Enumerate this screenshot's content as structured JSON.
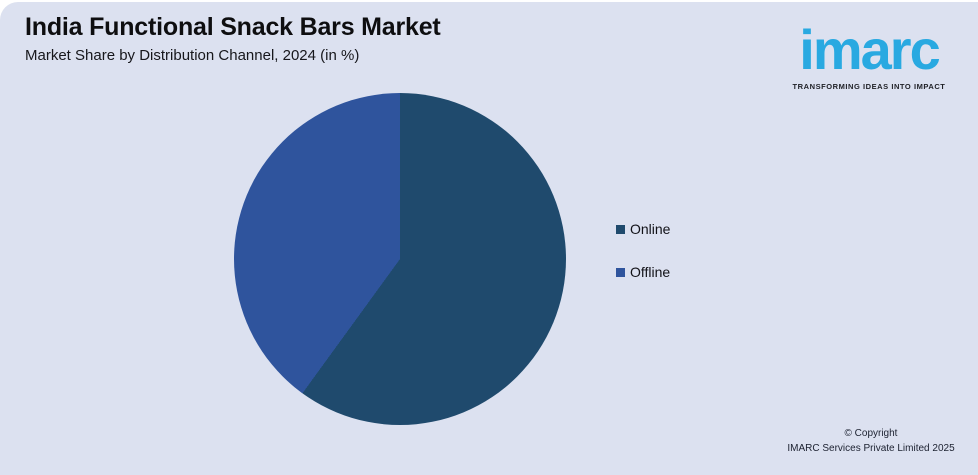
{
  "page": {
    "background_color": "#dce1f0",
    "frame_color": "#ffffff"
  },
  "header": {
    "title": "India Functional Snack Bars Market",
    "subtitle": "Market Share by Distribution Channel, 2024 (in %)"
  },
  "logo": {
    "text": "imarc",
    "tagline": "TRANSFORMING IDEAS INTO IMPACT",
    "brand_color": "#29a9e1",
    "tagline_color": "#1f2026"
  },
  "chart_data": {
    "type": "pie",
    "title": "India Functional Snack Bars Market",
    "subtitle": "Market Share by Distribution Channel, 2024 (in %)",
    "labels": [
      "Online",
      "Offline"
    ],
    "values": [
      60,
      40
    ],
    "colors": [
      "#1f4a6d",
      "#2f549d"
    ],
    "start_angle_deg": 0,
    "direction": "clockwise",
    "data_labels_shown": false,
    "legend_position": "right"
  },
  "legend": {
    "items": [
      {
        "label": "Online",
        "color": "#1f4a6d"
      },
      {
        "label": "Offline",
        "color": "#2f549d"
      }
    ]
  },
  "footer": {
    "line1": "© Copyright",
    "line2": "IMARC Services Private Limited 2025"
  }
}
